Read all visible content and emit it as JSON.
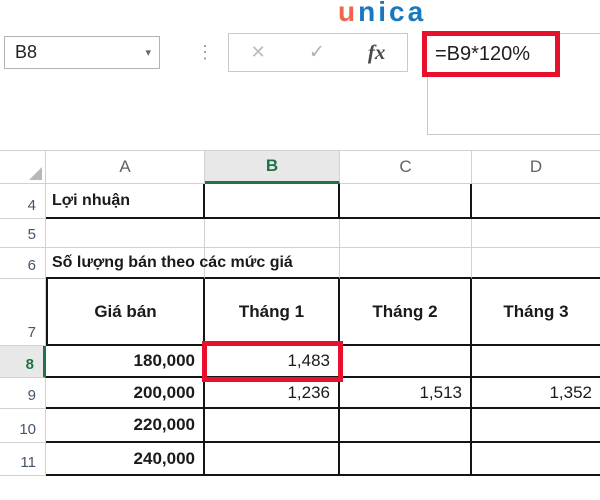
{
  "brand": {
    "logo_left": "u",
    "logo_right": "nica"
  },
  "formula_bar": {
    "cell_reference": "B8",
    "dropdown_icon": "▾",
    "drag_dots_icon": "⋮",
    "cancel_label": "✕",
    "enter_label": "✓",
    "function_label": "fx",
    "formula": "=B9*120%"
  },
  "grid": {
    "column_headers": [
      "A",
      "B",
      "C",
      "D"
    ],
    "selected_column": "B",
    "row_numbers": [
      "4",
      "5",
      "6",
      "7",
      "8",
      "9",
      "10",
      "11"
    ],
    "selected_row": "8",
    "cells": {
      "a4": "Lợi nhuận",
      "a6": "Số lượng bán theo các mức giá",
      "a7": "Giá bán",
      "b7": "Tháng 1",
      "c7": "Tháng 2",
      "d7": "Tháng 3",
      "a8": "180,000",
      "b8": "1,483",
      "a9": "200,000",
      "b9": "1,236",
      "c9": "1,513",
      "d9": "1,352",
      "a10": "220,000",
      "a11": "240,000"
    }
  },
  "colors": {
    "accent_green": "#217346",
    "annotation_red": "#e8112d",
    "logo_orange": "#f2654a",
    "logo_blue": "#1878be"
  }
}
